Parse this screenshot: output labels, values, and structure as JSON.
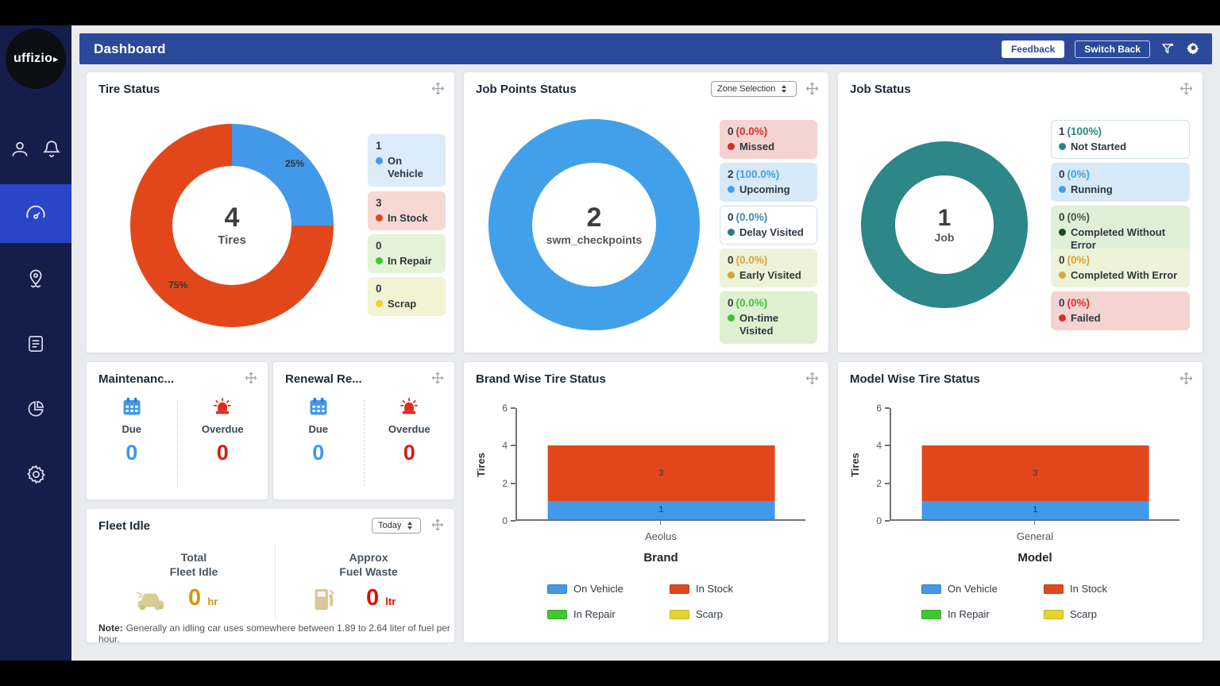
{
  "topbar": {
    "title": "Dashboard",
    "feedback_label": "Feedback",
    "switch_back_label": "Switch Back"
  },
  "sidebar": {
    "logo_text": "uffizio"
  },
  "icons": {
    "user": "person-outline-svg",
    "bell": "bell-outline-svg",
    "dashboard": "speedometer-svg",
    "tracking": "location-pin-svg",
    "reports": "document-svg",
    "analytics": "pie-chart-svg",
    "settings": "gear-glyph",
    "filter": "funnel-svg",
    "move": "four-arrows-svg",
    "due": "calendar-svg",
    "overdue": "siren-svg",
    "idle": "car-svg",
    "fuel": "fuel-pump-svg"
  },
  "colors": {
    "topbar_blue": "#2b4a9b",
    "sidebar_navy": "#151d4b",
    "active_blue": "#2b45c8",
    "on_vehicle_blue": "#4298e9",
    "in_stock_red": "#e2471c",
    "in_repair_green": "#3fc82f",
    "scrap_yellow": "#e6d42e",
    "teal": "#2d8688",
    "due_blue": "#4298e9",
    "overdue_red": "#d22015",
    "idle_amber": "#cf9a10",
    "fuel_red": "#e01000"
  },
  "tire_status": {
    "title": "Tire Status",
    "legend": [
      {
        "count": "1",
        "label": "On Vehicle",
        "dot": "#4298e9",
        "bg": "#dcecfa",
        "border": "transparent"
      },
      {
        "count": "3",
        "label": "In Stock",
        "dot": "#e2471c",
        "bg": "#f6d9d2",
        "border": "transparent"
      },
      {
        "count": "0",
        "label": "In Repair",
        "dot": "#3fc82f",
        "bg": "#e4f3d8",
        "border": "transparent"
      },
      {
        "count": "0",
        "label": "Scrap",
        "dot": "#e6d42e",
        "bg": "#f1f3d2",
        "border": "transparent"
      }
    ]
  },
  "job_points": {
    "title": "Job Points Status",
    "zone_select_value": "Zone Selection",
    "legend": [
      {
        "count": "0",
        "pct": "(0.0%)",
        "label": "Missed",
        "dot": "#d63029",
        "pct_color": "#d63029",
        "bg": "#f5d3d0",
        "border": "transparent"
      },
      {
        "count": "2",
        "pct": "(100.0%)",
        "label": "Upcoming",
        "dot": "#42a0ea",
        "pct_color": "#42a0ea",
        "bg": "#d8e9f8",
        "border": "transparent"
      },
      {
        "count": "0",
        "pct": "(0.0%)",
        "label": "Delay Visited",
        "dot": "#2a7d80",
        "pct_color": "#3d87b5",
        "bg": "#ffffff",
        "border": "#cfe0ec"
      },
      {
        "count": "0",
        "pct": "(0.0%)",
        "label": "Early Visited",
        "dot": "#d9a43a",
        "pct_color": "#d9a43a",
        "bg": "#eef2d8",
        "border": "transparent"
      },
      {
        "count": "0",
        "pct": "(0.0%)",
        "label": "On-time Visited",
        "dot": "#3fc437",
        "pct_color": "#3fc437",
        "bg": "#dff0d0",
        "border": "transparent"
      }
    ]
  },
  "job_status": {
    "title": "Job Status",
    "legend": [
      {
        "count": "1",
        "pct": "(100%)",
        "label": "Not Started",
        "dot": "#2d8688",
        "pct_color": "#2d8688",
        "bg": "#ffffff",
        "border": "#cfe3e4"
      },
      {
        "count": "0",
        "pct": "(0%)",
        "label": "Running",
        "dot": "#42a0ea",
        "pct_color": "#42a0ea",
        "bg": "#d8e9f8",
        "border": "transparent"
      },
      {
        "count": "0",
        "pct": "(0%)",
        "label": "Completed Without Error",
        "dot": "#1e4620",
        "pct_color": "#4a5a4e",
        "bg": "#e0efd8",
        "border": "transparent"
      },
      {
        "count": "0",
        "pct": "(0%)",
        "label": "Completed With Error",
        "dot": "#d9a43a",
        "pct_color": "#d9a43a",
        "bg": "#eef2d8",
        "border": "transparent"
      },
      {
        "count": "0",
        "pct": "(0%)",
        "label": "Failed",
        "dot": "#d63029",
        "pct_color": "#d63029",
        "bg": "#f5d3d0",
        "border": "transparent"
      }
    ]
  },
  "maintenance": {
    "title": "Maintenanc...",
    "due_label": "Due",
    "due_value": "0",
    "overdue_label": "Overdue",
    "overdue_value": "0"
  },
  "renewal": {
    "title": "Renewal Re...",
    "due_label": "Due",
    "due_value": "0",
    "overdue_label": "Overdue",
    "overdue_value": "0"
  },
  "fleet_idle": {
    "title": "Fleet Idle",
    "period_select_value": "Today",
    "total_label_line1": "Total",
    "total_label_line2": "Fleet Idle",
    "total_value": "0",
    "total_unit": "hr",
    "fuel_label_line1": "Approx",
    "fuel_label_line2": "Fuel Waste",
    "fuel_value": "0",
    "fuel_unit": "ltr",
    "note_prefix": "Note:",
    "note_text": "Generally an idling car uses somewhere between 1.89 to 2.64 liter of fuel per hour."
  },
  "chart_data": [
    {
      "type": "pie",
      "title": "Tire Status",
      "labels": [
        "On Vehicle",
        "In Stock",
        "In Repair",
        "Scrap"
      ],
      "values": [
        1,
        3,
        0,
        0
      ],
      "slice_colors": [
        "#4298e9",
        "#e2471c",
        "#3fc82f",
        "#e6d42e"
      ],
      "percent_labels": [
        "25%",
        "75%"
      ],
      "center": {
        "value": "4",
        "label": "Tires"
      },
      "legend_position": "right"
    },
    {
      "type": "pie",
      "title": "Job Points Status",
      "labels": [
        "Missed",
        "Upcoming",
        "Delay Visited",
        "Early Visited",
        "On-time Visited"
      ],
      "values": [
        0,
        2,
        0,
        0,
        0
      ],
      "slice_colors": [
        "#d63029",
        "#42a0ea",
        "#2a7d80",
        "#d9a43a",
        "#3fc437"
      ],
      "center": {
        "value": "2",
        "label": "swm_checkpoints"
      },
      "legend_position": "right"
    },
    {
      "type": "pie",
      "title": "Job Status",
      "labels": [
        "Not Started",
        "Running",
        "Completed Without Error",
        "Completed With Error",
        "Failed"
      ],
      "values": [
        1,
        0,
        0,
        0,
        0
      ],
      "slice_colors": [
        "#2d8688",
        "#42a0ea",
        "#1e4620",
        "#d9a43a",
        "#d63029"
      ],
      "center": {
        "value": "1",
        "label": "Job"
      },
      "legend_position": "right"
    },
    {
      "type": "bar",
      "stacked": true,
      "title": "Brand Wise Tire Status",
      "categories": [
        "Aeolus"
      ],
      "series": [
        {
          "name": "On Vehicle",
          "color": "#4298e9",
          "values": [
            1
          ]
        },
        {
          "name": "In Stock",
          "color": "#e2471c",
          "values": [
            3
          ]
        },
        {
          "name": "In Repair",
          "color": "#3fc82f",
          "values": [
            0
          ]
        },
        {
          "name": "Scarp",
          "color": "#e6d42e",
          "values": [
            0
          ]
        }
      ],
      "xlabel": "Brand",
      "ylabel": "Tires",
      "ylim": [
        0,
        6
      ],
      "yticks": [
        0,
        2,
        4,
        6
      ],
      "grid": false,
      "legend_position": "bottom"
    },
    {
      "type": "bar",
      "stacked": true,
      "title": "Model Wise Tire Status",
      "categories": [
        "General"
      ],
      "series": [
        {
          "name": "On Vehicle",
          "color": "#4298e9",
          "values": [
            1
          ]
        },
        {
          "name": "In Stock",
          "color": "#e2471c",
          "values": [
            3
          ]
        },
        {
          "name": "In Repair",
          "color": "#3fc82f",
          "values": [
            0
          ]
        },
        {
          "name": "Scarp",
          "color": "#e6d42e",
          "values": [
            0
          ]
        }
      ],
      "xlabel": "Model",
      "ylabel": "Tires",
      "ylim": [
        0,
        6
      ],
      "yticks": [
        0,
        2,
        4,
        6
      ],
      "grid": false,
      "legend_position": "bottom"
    }
  ]
}
